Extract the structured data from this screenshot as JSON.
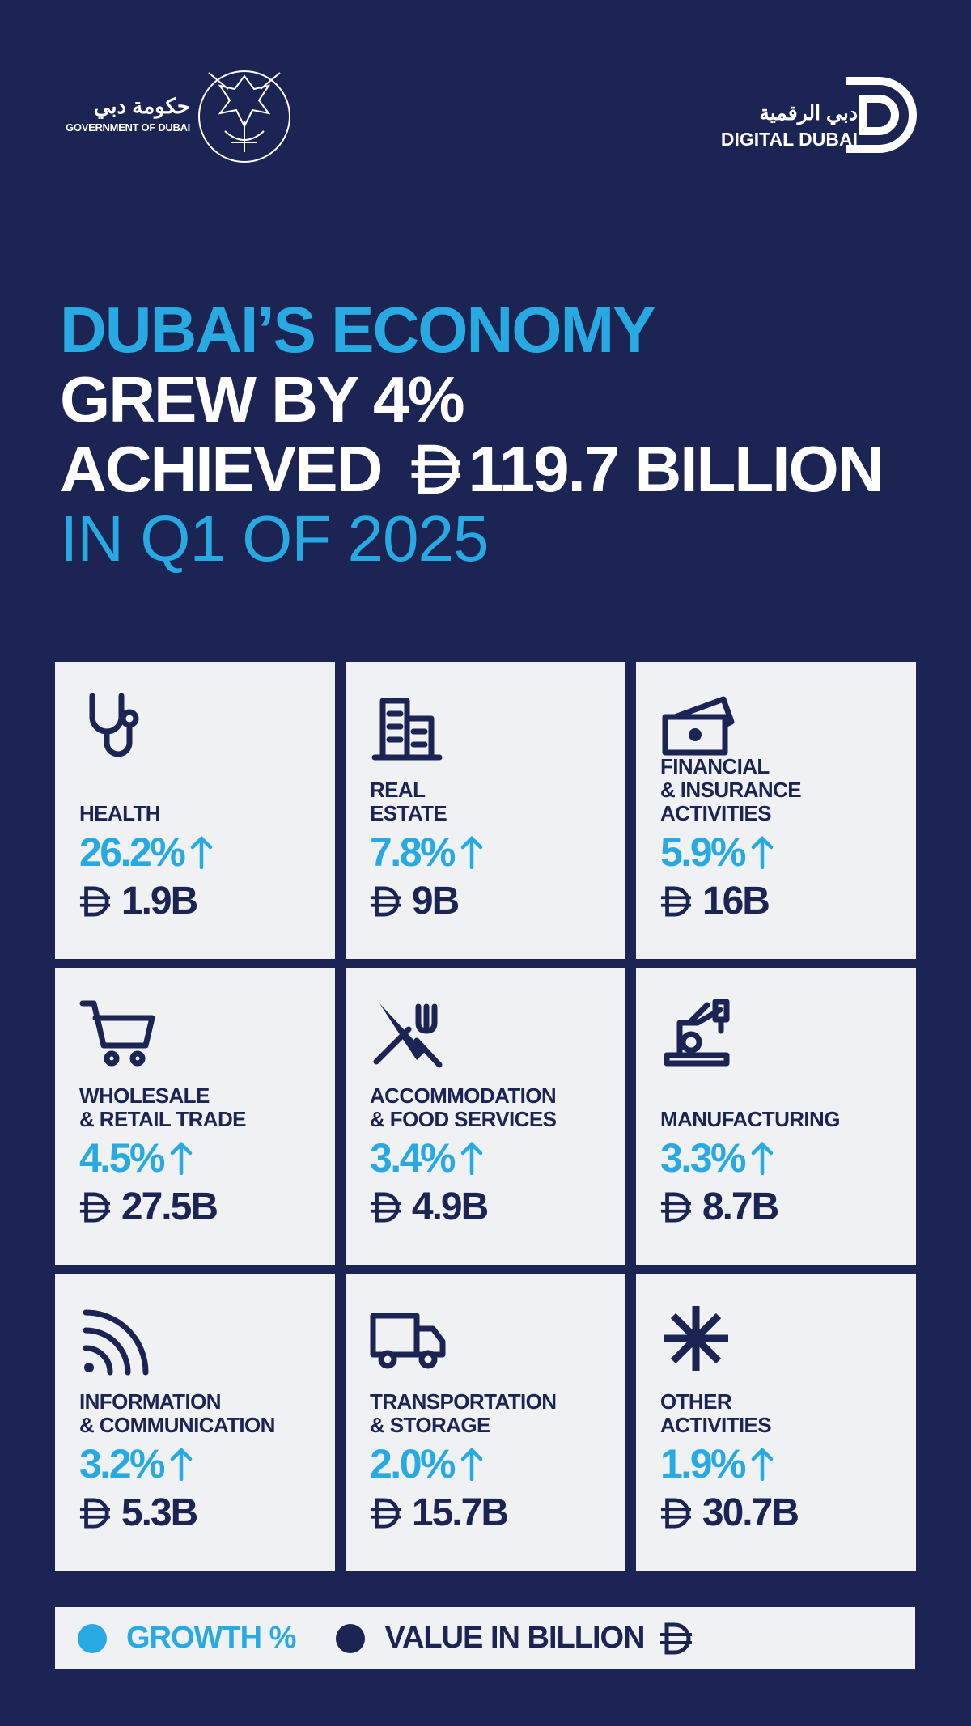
{
  "header": {
    "government_ar": "حكومة دبي",
    "government_en": "GOVERNMENT OF DUBAI",
    "digital_ar": "دبي الرقمية",
    "digital_en": "DIGITAL DUBAI"
  },
  "headline": {
    "line1": "DUBAI’S ECONOMY",
    "line2": "GREW BY 4%",
    "line3_prefix": "ACHIEVED",
    "line3_amount": "119.7 BILLION",
    "line4": "IN Q1 OF 2025"
  },
  "sectors": [
    {
      "label": [
        "HEALTH"
      ],
      "growth": "26.2%",
      "value": "1.9B"
    },
    {
      "label": [
        "REAL",
        "ESTATE"
      ],
      "growth": "7.8%",
      "value": "9B"
    },
    {
      "label": [
        "FINANCIAL",
        "& INSURANCE",
        "ACTIVITIES"
      ],
      "growth": "5.9%",
      "value": "16B"
    },
    {
      "label": [
        "WHOLESALE",
        "& RETAIL TRADE"
      ],
      "growth": "4.5%",
      "value": "27.5B"
    },
    {
      "label": [
        "ACCOMMODATION",
        "& FOOD SERVICES"
      ],
      "growth": "3.4%",
      "value": "4.9B"
    },
    {
      "label": [
        "MANUFACTURING"
      ],
      "growth": "3.3%",
      "value": "8.7B"
    },
    {
      "label": [
        "INFORMATION",
        "& COMMUNICATION"
      ],
      "growth": "3.2%",
      "value": "5.3B"
    },
    {
      "label": [
        "TRANSPORTATION",
        "& STORAGE"
      ],
      "growth": "2.0%",
      "value": "15.7B"
    },
    {
      "label": [
        "OTHER",
        "ACTIVITIES"
      ],
      "growth": "1.9%",
      "value": "30.7B"
    }
  ],
  "legend": {
    "growth": "GROWTH %",
    "value": "VALUE IN BILLION"
  }
}
